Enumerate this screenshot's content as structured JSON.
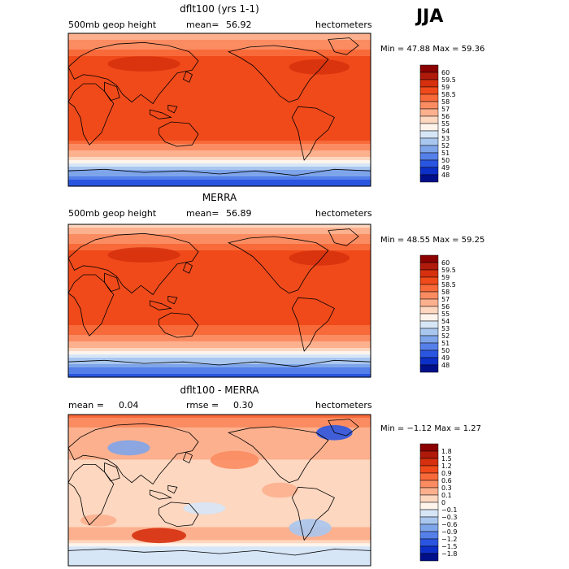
{
  "season": "JJA",
  "panels": [
    {
      "title": "dflt100 (yrs 1-1)",
      "left_label": "500mb geop height",
      "mean_label": "mean=",
      "mean_value": "56.92",
      "units": "hectometers",
      "min_label": "Min =",
      "min_value": "47.88",
      "max_label": "Max =",
      "max_value": "59.36"
    },
    {
      "title": "MERRA",
      "left_label": "500mb geop height",
      "mean_label": "mean=",
      "mean_value": "56.89",
      "units": "hectometers",
      "min_label": "Min =",
      "min_value": "48.55",
      "max_label": "Max =",
      "max_value": "59.25"
    },
    {
      "title": "dflt100 - MERRA",
      "left_label": "mean =",
      "left_value": "0.04",
      "mid_label": "rmse =",
      "mid_value": "0.30",
      "units": "hectometers",
      "min_label": "Min =",
      "min_value": "−1.12",
      "max_label": "Max =",
      "max_value": "1.27"
    }
  ],
  "colorbars": [
    {
      "labels": [
        "60",
        "59.5",
        "59",
        "58.5",
        "58",
        "57",
        "56",
        "55",
        "54",
        "53",
        "52",
        "51",
        "50",
        "49",
        "48"
      ],
      "colors": [
        "#8b0000",
        "#b01a0a",
        "#d6300e",
        "#f04a1a",
        "#f86a3a",
        "#fb8c62",
        "#fcb08e",
        "#fdd7c0",
        "#fff4ec",
        "#d6e6f7",
        "#a9c6ef",
        "#7ea5ea",
        "#5580ea",
        "#2a55e0",
        "#0c2fc8",
        "#000f8a"
      ]
    },
    {
      "labels": [
        "60",
        "59.5",
        "59",
        "58.5",
        "58",
        "57",
        "56",
        "55",
        "54",
        "53",
        "52",
        "51",
        "50",
        "49",
        "48"
      ],
      "colors": [
        "#8b0000",
        "#b01a0a",
        "#d6300e",
        "#f04a1a",
        "#f86a3a",
        "#fb8c62",
        "#fcb08e",
        "#fdd7c0",
        "#fff4ec",
        "#d6e6f7",
        "#a9c6ef",
        "#7ea5ea",
        "#5580ea",
        "#2a55e0",
        "#0c2fc8",
        "#000f8a"
      ]
    },
    {
      "labels": [
        "1.8",
        "1.5",
        "1.2",
        "0.9",
        "0.6",
        "0.3",
        "0.1",
        "0",
        "−0.1",
        "−0.3",
        "−0.6",
        "−0.9",
        "−1.2",
        "−1.5",
        "−1.8"
      ],
      "colors": [
        "#8b0000",
        "#b01a0a",
        "#d6300e",
        "#f04a1a",
        "#f86a3a",
        "#fb8c62",
        "#fcb08e",
        "#fdd7c0",
        "#fff4ec",
        "#d6e6f7",
        "#a9c6ef",
        "#7ea5ea",
        "#5580ea",
        "#2a55e0",
        "#0c2fc8",
        "#000f8a"
      ]
    }
  ],
  "chart_data": [
    {
      "type": "heatmap",
      "title": "dflt100 (yrs 1-1)",
      "variable": "500mb geop height",
      "units": "hectometers",
      "mean": 56.92,
      "min": 47.88,
      "max": 59.36,
      "latitude_profile": [
        49.0,
        52.0,
        56.0,
        58.5,
        58.7,
        58.6,
        58.5,
        58.6,
        58.9,
        58.0,
        56.5
      ],
      "contour_levels": [
        48,
        49,
        50,
        51,
        52,
        53,
        54,
        55,
        56,
        57,
        58,
        58.5,
        59,
        59.5,
        60
      ]
    },
    {
      "type": "heatmap",
      "title": "MERRA",
      "variable": "500mb geop height",
      "units": "hectometers",
      "mean": 56.89,
      "min": 48.55,
      "max": 59.25,
      "latitude_profile": [
        49.5,
        52.2,
        56.0,
        58.4,
        58.6,
        58.6,
        58.5,
        58.5,
        58.8,
        57.8,
        55.5
      ],
      "contour_levels": [
        48,
        49,
        50,
        51,
        52,
        53,
        54,
        55,
        56,
        57,
        58,
        58.5,
        59,
        59.5,
        60
      ]
    },
    {
      "type": "heatmap",
      "title": "dflt100 - MERRA",
      "units": "hectometers",
      "mean": 0.04,
      "rmse": 0.3,
      "min": -1.12,
      "max": 1.27,
      "latitude_profile": [
        -0.3,
        -0.2,
        0.2,
        0.0,
        0.1,
        0.05,
        0.0,
        0.1,
        0.15,
        0.2,
        0.7
      ],
      "contour_levels": [
        -1.8,
        -1.5,
        -1.2,
        -0.9,
        -0.6,
        -0.3,
        -0.1,
        0,
        0.1,
        0.3,
        0.6,
        0.9,
        1.2,
        1.5,
        1.8
      ]
    }
  ]
}
